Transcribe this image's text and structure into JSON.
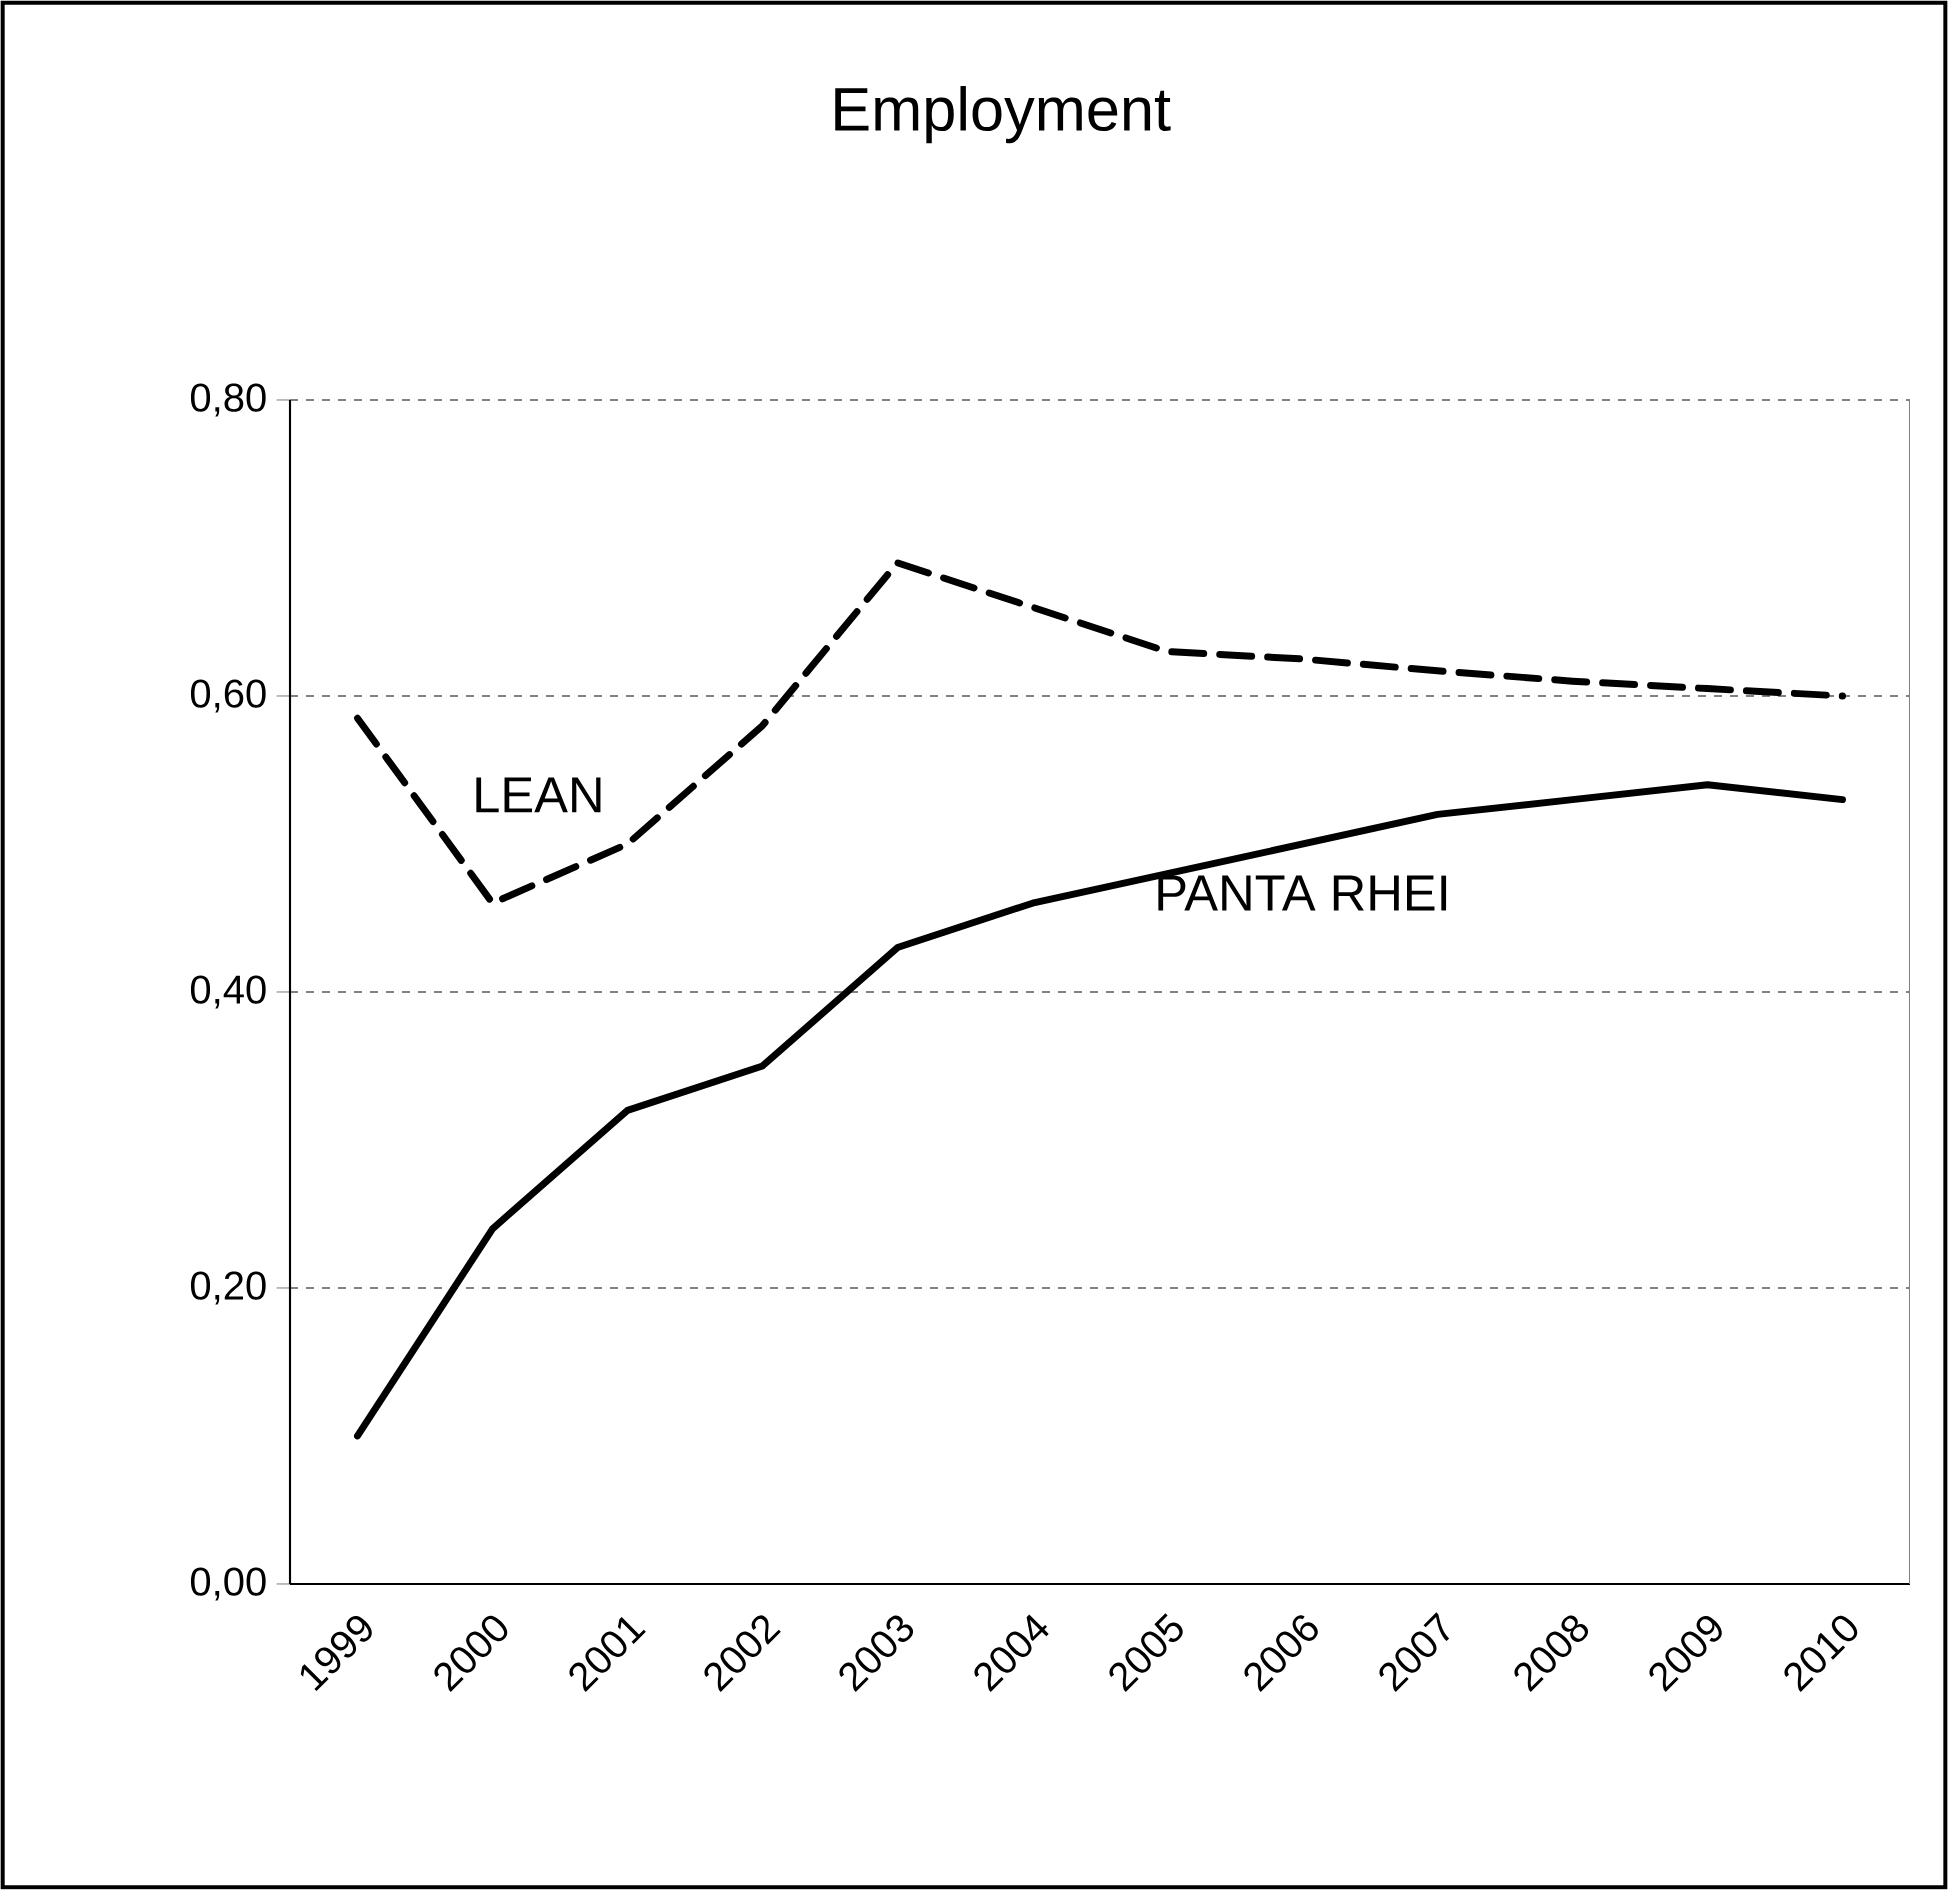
{
  "chart_data": {
    "type": "line",
    "title": "Employment",
    "categories": [
      "1999",
      "2000",
      "2001",
      "2002",
      "2003",
      "2004",
      "2005",
      "2006",
      "2007",
      "2008",
      "2009",
      "2010"
    ],
    "series": [
      {
        "name": "LEAN",
        "color": "#000000",
        "line_style": "dashed",
        "values": [
          0.585,
          0.46,
          0.5,
          0.58,
          0.69,
          0.66,
          0.63,
          0.625,
          0.617,
          0.61,
          0.605,
          0.6
        ]
      },
      {
        "name": "PANTA RHEI",
        "color": "#000000",
        "line_style": "solid",
        "values": [
          0.1,
          0.24,
          0.32,
          0.35,
          0.43,
          0.46,
          0.48,
          0.5,
          0.52,
          0.53,
          0.54,
          0.53
        ]
      }
    ],
    "ylim": [
      0,
      0.8
    ],
    "yticks": [
      {
        "value": 0,
        "label": "0,00"
      },
      {
        "value": 0.2,
        "label": "0,20"
      },
      {
        "value": 0.4,
        "label": "0,40"
      },
      {
        "value": 0.6,
        "label": "0,60"
      },
      {
        "value": 0.8,
        "label": "0,80"
      }
    ],
    "grid": "y",
    "legend": false,
    "marker": "none"
  }
}
